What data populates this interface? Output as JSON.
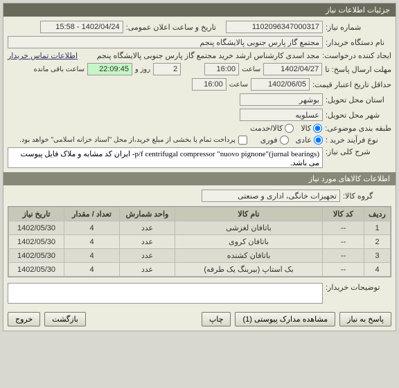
{
  "top": {
    "title": "جزئیات اطلاعات نیاز"
  },
  "req": {
    "labels": {
      "number": "شماره نیاز:",
      "announce": "تاریخ و ساعت اعلان عمومی:",
      "buyer": "نام دستگاه خریدار:",
      "creator": "ایجاد کننده درخواست:",
      "contact_link": "اطلاعات تماس خریدار",
      "deadline": "مهلت ارسال پاسخ: تا",
      "saat": "ساعت",
      "rooz_va": "روز و",
      "remain": "ساعت باقی مانده",
      "min_valid": "حداقل تاریخ اعتبار قیمت:",
      "delivery_province": "استان محل تحویل:",
      "delivery_city": "شهر محل تحویل:",
      "subject_class": "طبقه بندی موضوعی:",
      "purchase_type": "نوع فرآیند خرید :",
      "purchase_note": "پرداخت تمام یا بخشی از مبلغ خرید،از محل \"اسناد خزانه اسلامی\" خواهد بود.",
      "desc": "شرح کلی نیاز:"
    },
    "number": "1102096347000317",
    "announce": "1402/04/24 - 15:58",
    "buyer": "مجتمع گاز پارس جنوبی  پالایشگاه پنجم",
    "creator": "مجد اسدی کارشناس ارشد خرید مجتمع گاز پارس جنوبی  پالایشگاه پنجم",
    "deadline_date": "1402/04/27",
    "deadline_time": "16:00",
    "days_left": "2",
    "time_left": "22:09:45",
    "min_valid_date": "1402/06/05",
    "min_valid_time": "16:00",
    "province": "بوشهر",
    "city": "عسلویه",
    "subject_options": {
      "kala": "کالا",
      "khadamat": "کالا/خدمت"
    },
    "purchase_options": {
      "adi": "عادی",
      "forush": "فوری"
    },
    "desc": "p/f centrifugal compressor \"nuovo pignone\"(jurnal bearings)- ایران کد مشابه و ملاک فایل پیوست می باشد."
  },
  "items": {
    "header": "اطلاعات کالاهای مورد نیاز",
    "group_label": "گروه کالا:",
    "group_value": "تجهیزات خانگی، اداری و صنعتی",
    "columns": {
      "row": "ردیف",
      "code": "کد کالا",
      "name": "نام کالا",
      "unit": "واحد شمارش",
      "qty": "تعداد / مقدار",
      "need_date": "تاریخ نیاز"
    },
    "rows": [
      {
        "n": "1",
        "code": "--",
        "name": "باتافان لغزشی",
        "unit": "عدد",
        "qty": "4",
        "date": "1402/05/30"
      },
      {
        "n": "2",
        "code": "--",
        "name": "باتافان کروی",
        "unit": "عدد",
        "qty": "4",
        "date": "1402/05/30"
      },
      {
        "n": "3",
        "code": "--",
        "name": "باتافان کشنده",
        "unit": "عدد",
        "qty": "4",
        "date": "1402/05/30"
      },
      {
        "n": "4",
        "code": "--",
        "name": "بک استاپ (بیرینگ یک طرفه)",
        "unit": "عدد",
        "qty": "4",
        "date": "1402/05/30"
      }
    ]
  },
  "buyer_notes": {
    "label": "توضیحات خریدار:"
  },
  "footer": {
    "reply": "پاسخ به نیاز",
    "attachments": "مشاهده مدارک پیوستی (1)",
    "print": "چاپ",
    "back": "بازگشت",
    "exit": "خروج"
  }
}
